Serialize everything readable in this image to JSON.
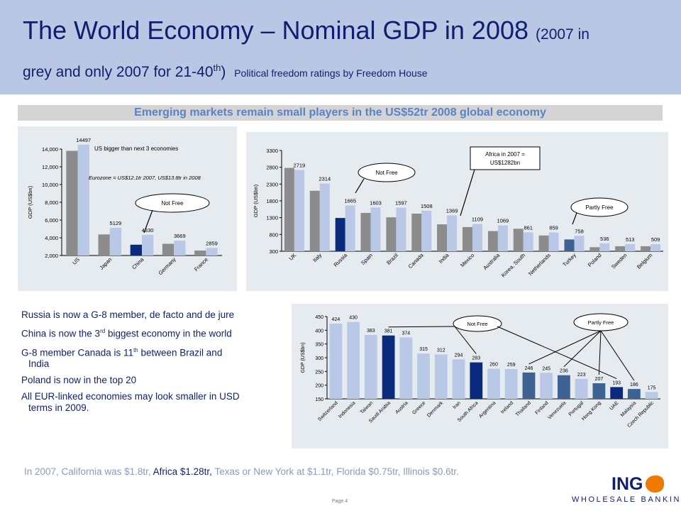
{
  "header": {
    "title_main": "The World Economy – Nominal GDP in 2008",
    "title_paren": "(2007 in",
    "title_line2a": "grey and only 2007 for 21-40",
    "title_line2_sup": "th",
    "title_line2b": ")",
    "title_note": "Political freedom ratings by Freedom House"
  },
  "banner": "Emerging markets remain small players in the US$52tr 2008 global economy",
  "colors": {
    "grey2007": "#8c8c8c",
    "blue2008": "#b8c8e6",
    "notfree": "#0a2a7e",
    "partlyfree": "#3d6294"
  },
  "chart_data": [
    {
      "type": "bar",
      "ylabel": "GDP (US$bn)",
      "ylim": [
        2000,
        14000
      ],
      "yticks": [
        "2,000",
        "4,000",
        "6,000",
        "8,000",
        "10,000",
        "12,000",
        "14,000"
      ],
      "categories": [
        "US",
        "Japan",
        "China",
        "Germany",
        "France"
      ],
      "series": [
        {
          "name": "2007",
          "values": [
            13800,
            4380,
            3220,
            3320,
            2560
          ]
        },
        {
          "name": "2008",
          "values": [
            14497,
            5129,
            4330,
            3669,
            2859
          ]
        }
      ],
      "freedom_2007": [
        "free",
        "free",
        "notfree",
        "free",
        "free"
      ],
      "data_labels": [
        "14497",
        "5129",
        "4330",
        "3669",
        "2859"
      ],
      "annotations": [
        "US bigger than next 3 economies",
        "Eurozone = US$12.1tr 2007, US$13.8tr in 2008",
        "Not Free"
      ]
    },
    {
      "type": "bar",
      "ylabel": "GDP (US$bn)",
      "ylim": [
        300,
        3300
      ],
      "yticks": [
        "300",
        "800",
        "1300",
        "1800",
        "2300",
        "2800",
        "3300"
      ],
      "categories": [
        "UK",
        "Italy",
        "Russia",
        "Spain",
        "Brazil",
        "Canada",
        "India",
        "Mexico",
        "Australia",
        "Korea, South",
        "Netherlands",
        "Turkey",
        "Poland",
        "Sweden",
        "Belgium"
      ],
      "series": [
        {
          "name": "2007",
          "values": [
            2780,
            2100,
            1290,
            1440,
            1310,
            1420,
            1100,
            1020,
            900,
            970,
            770,
            650,
            420,
            450,
            450
          ]
        },
        {
          "name": "2008",
          "values": [
            2719,
            2314,
            1665,
            1603,
            1597,
            1508,
            1369,
            1109,
            1069,
            861,
            859,
            758,
            536,
            513,
            509
          ]
        }
      ],
      "freedom_2007": [
        "free",
        "free",
        "notfree",
        "free",
        "free",
        "free",
        "free",
        "free",
        "free",
        "free",
        "free",
        "partlyfree",
        "free",
        "free",
        "free"
      ],
      "data_labels": [
        "2719",
        "2314",
        "1665",
        "1603",
        "1597",
        "1508",
        "1369",
        "1109",
        "1069",
        "861",
        "859",
        "758",
        "536",
        "513",
        "509"
      ],
      "annotations": [
        "Not Free",
        "Africa in 2007 =",
        "US$1282bn",
        "Partly Free"
      ]
    },
    {
      "type": "bar",
      "ylabel": "GDP (US$bn)",
      "ylim": [
        150,
        450
      ],
      "yticks": [
        "150",
        "200",
        "250",
        "300",
        "350",
        "400",
        "450"
      ],
      "categories": [
        "Switzerland",
        "Indonesia",
        "Taiwan",
        "Saudi Arabia",
        "Austria",
        "Greece",
        "Denmark",
        "Iran",
        "South Africa",
        "Argentina",
        "Ireland",
        "Thailand",
        "Finland",
        "Venezuela",
        "Portugal",
        "Hong Kong",
        "UAE",
        "Malaysia",
        "Czech Republic"
      ],
      "series": [
        {
          "name": "2007",
          "values": [
            424,
            430,
            383,
            381,
            374,
            315,
            312,
            294,
            283,
            260,
            259,
            246,
            245,
            236,
            223,
            207,
            193,
            186,
            175
          ]
        }
      ],
      "freedom_2007": [
        "free",
        "free",
        "free",
        "notfree",
        "free",
        "free",
        "free",
        "free",
        "notfree",
        "free",
        "free",
        "partlyfree",
        "free",
        "partlyfree",
        "free",
        "partlyfree",
        "notfree",
        "partlyfree",
        "free"
      ],
      "data_labels": [
        "424",
        "430",
        "383",
        "381",
        "374",
        "315",
        "312",
        "294",
        "283",
        "260",
        "259",
        "246",
        "245",
        "236",
        "223",
        "207",
        "193",
        "186",
        "175"
      ],
      "annotations": [
        "Not Free",
        "Partly Free"
      ]
    }
  ],
  "bullets": [
    {
      "a": "Russia is now a G-8 member, de facto and de jure",
      "sup": "",
      "b": ""
    },
    {
      "a": "China is now the 3",
      "sup": "rd",
      "b": " biggest economy in the world"
    },
    {
      "a": "G-8 member Canada is 11",
      "sup": "th",
      "b": " between Brazil and India"
    },
    {
      "a": "Poland is now in the top 20",
      "sup": "",
      "b": ""
    },
    {
      "a": "All EUR-linked economies may look smaller in USD terms in 2009.",
      "sup": "",
      "b": ""
    }
  ],
  "footnote": {
    "a": "In 2007, California was $1.8tr,",
    "b": "Africa $1.28tr,",
    "c": "Texas or New York at $1.1tr, Florida $0.75tr, Illinois $0.6tr."
  },
  "page": "Page 4",
  "logo": {
    "name": "ING",
    "tagline": "WHOLESALE BANKING"
  }
}
